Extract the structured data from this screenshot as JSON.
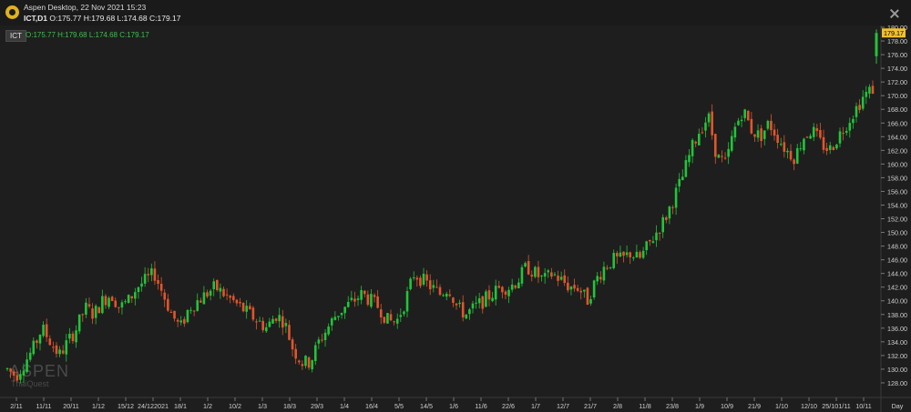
{
  "window": {
    "title": "Aspen Desktop, 22 Nov 2021 15:23",
    "symbol": "ICT,D1",
    "ohlc": "O:175.77 H:179.68 L:174.68 C:179.17"
  },
  "legend": {
    "symbol": "ICT",
    "ohlc": "O:175.77 H:179.68 L:174.68 C:179.17"
  },
  "watermark": {
    "brand": "ASPEN",
    "sub": "ThaiQuest"
  },
  "colors": {
    "background": "#1e1e1e",
    "up": "#22c43a",
    "down": "#e0562c",
    "last_price_bg": "#f0c030",
    "grid": "#2a2a2a",
    "axis_text": "#cfcfcf"
  },
  "chart_data": {
    "type": "candlestick",
    "title": "",
    "ylim": [
      126,
      180
    ],
    "y_ticks": [
      "128.00",
      "130.00",
      "132.00",
      "134.00",
      "136.00",
      "138.00",
      "140.00",
      "142.00",
      "144.00",
      "146.00",
      "148.00",
      "150.00",
      "152.00",
      "154.00",
      "156.00",
      "158.00",
      "160.00",
      "162.00",
      "164.00",
      "166.00",
      "168.00",
      "170.00",
      "172.00",
      "174.00",
      "176.00",
      "178.00",
      "180.00"
    ],
    "x_ticks": [
      "2/11",
      "11/11",
      "20/11",
      "1/12",
      "15/12",
      "24/122021",
      "18/1",
      "1/2",
      "10/2",
      "1/3",
      "18/3",
      "29/3",
      "1/4",
      "16/4",
      "5/5",
      "14/5",
      "1/6",
      "11/6",
      "22/6",
      "1/7",
      "12/7",
      "21/7",
      "2/8",
      "11/8",
      "23/8",
      "1/9",
      "10/9",
      "21/9",
      "1/10",
      "12/10",
      "25/101/11",
      "10/11"
    ],
    "x_unit": "Day",
    "last_price": "179.17",
    "series_path": [
      130,
      129,
      131,
      133,
      136,
      134,
      132,
      134,
      136,
      139,
      138,
      140,
      141,
      139,
      140,
      142,
      143,
      144,
      141,
      138,
      136,
      139,
      140,
      141,
      142,
      141,
      140,
      139,
      138,
      137,
      136,
      138,
      137,
      133,
      131,
      131,
      134,
      136,
      138,
      139,
      140,
      141,
      140,
      139,
      137,
      137,
      140,
      144,
      143,
      142,
      141,
      142,
      139,
      138,
      139,
      140,
      141,
      142,
      142,
      143,
      145,
      144,
      143,
      144,
      143,
      142,
      142,
      140,
      143,
      145,
      146,
      146,
      147,
      146,
      148,
      150,
      152,
      155,
      158,
      162,
      165,
      167,
      161,
      160,
      165,
      168,
      165,
      164,
      166,
      164,
      162,
      161,
      164,
      165,
      163,
      162,
      164,
      166,
      168,
      170,
      171
    ],
    "last_candle": {
      "open": 175.77,
      "high": 179.68,
      "low": 174.68,
      "close": 179.17
    },
    "n_candles": 265
  }
}
